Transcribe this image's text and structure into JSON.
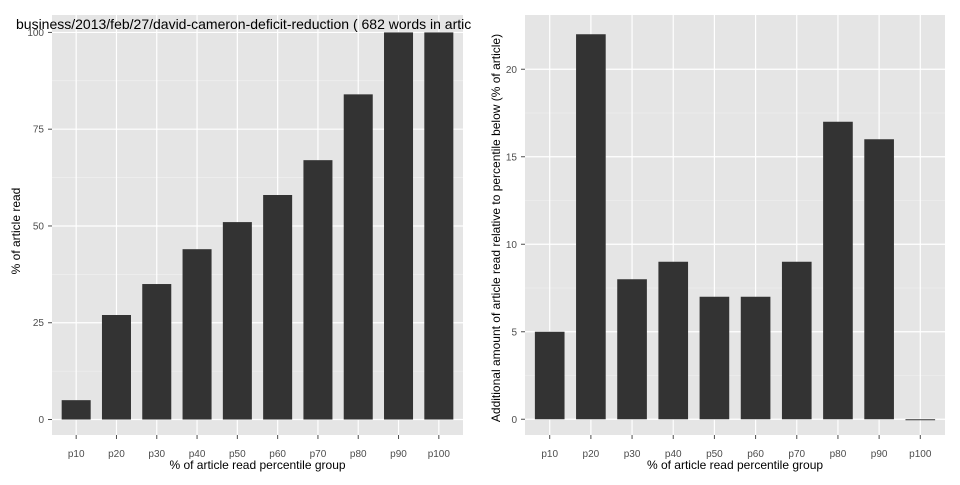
{
  "colors": {
    "panel_background": "#e5e5e5",
    "major_grid": "#ffffff",
    "minor_grid": "#f2f2f2",
    "bar": "#333333",
    "tick_text": "#4d4d4d"
  },
  "chart_data": [
    {
      "type": "bar",
      "title": "business/2013/feb/27/david-cameron-deficit-reduction ( 682 words in artic",
      "xlabel": "% of article read percentile group",
      "ylabel": "% of article read",
      "categories": [
        "p10",
        "p20",
        "p30",
        "p40",
        "p50",
        "p60",
        "p70",
        "p80",
        "p90",
        "p100"
      ],
      "values": [
        5,
        27,
        35,
        44,
        51,
        58,
        67,
        84,
        100,
        100
      ],
      "ylim": [
        -4,
        104.5
      ],
      "yticks": [
        0,
        25,
        50,
        75,
        100
      ],
      "ytick_labels": [
        "0",
        "25",
        "50",
        "75",
        "100"
      ],
      "grid": true,
      "legend": "none"
    },
    {
      "type": "bar",
      "title": "",
      "xlabel": "% of article read percentile group",
      "ylabel": "Additional amount of article read relative to percentile below (% of article)",
      "categories": [
        "p10",
        "p20",
        "p30",
        "p40",
        "p50",
        "p60",
        "p70",
        "p80",
        "p90",
        "p100"
      ],
      "values": [
        5,
        22,
        8,
        9,
        7,
        7,
        9,
        17,
        16,
        0
      ],
      "ylim": [
        -0.9,
        23.1
      ],
      "yticks": [
        0,
        5,
        10,
        15,
        20
      ],
      "ytick_labels": [
        "0",
        "5",
        "10",
        "15",
        "20"
      ],
      "grid": true,
      "legend": "none"
    }
  ]
}
